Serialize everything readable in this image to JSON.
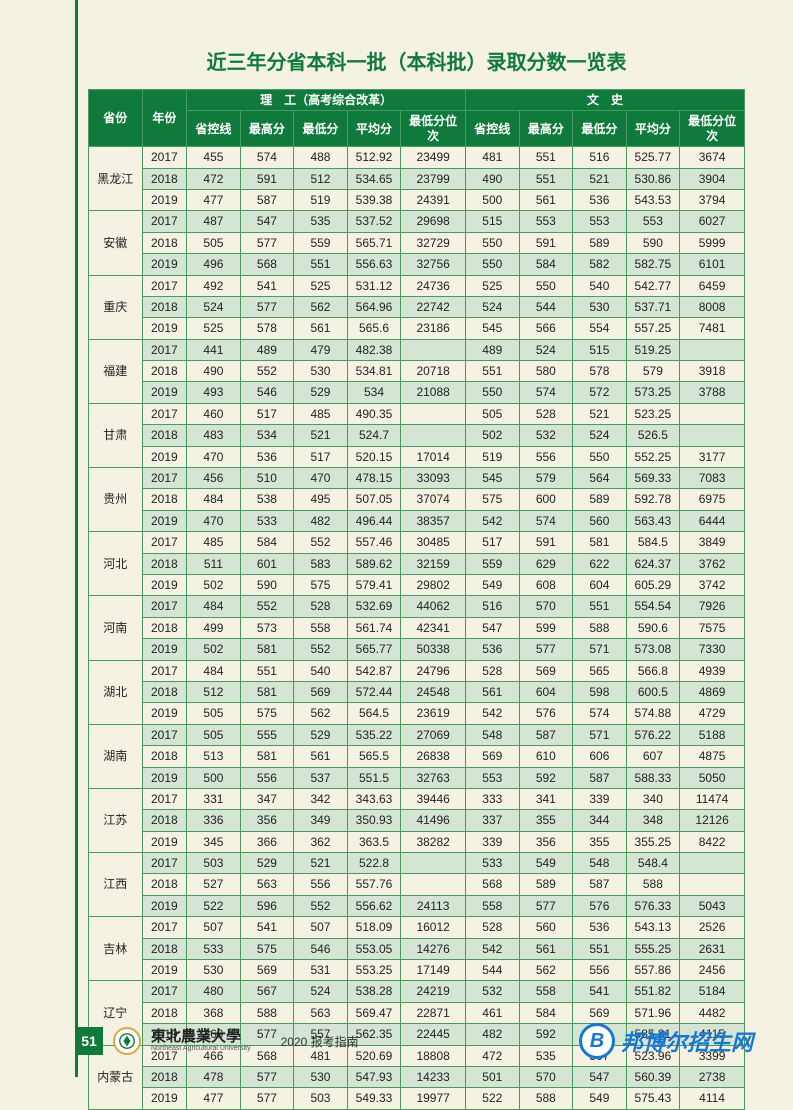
{
  "title": "近三年分省本科一批（本科批）录取分数一览表",
  "header": {
    "province": "省份",
    "year": "年份",
    "science_group": "理　工（高考综合改革）",
    "arts_group": "文　史",
    "cols": [
      "省控线",
      "最高分",
      "最低分",
      "平均分",
      "最低分位次",
      "省控线",
      "最高分",
      "最低分",
      "平均分",
      "最低分位次"
    ]
  },
  "provinces": [
    {
      "name": "黑龙江",
      "rows": [
        {
          "year": "2017",
          "v": [
            "455",
            "574",
            "488",
            "512.92",
            "23499",
            "481",
            "551",
            "516",
            "525.77",
            "3674"
          ]
        },
        {
          "year": "2018",
          "v": [
            "472",
            "591",
            "512",
            "534.65",
            "23799",
            "490",
            "551",
            "521",
            "530.86",
            "3904"
          ]
        },
        {
          "year": "2019",
          "v": [
            "477",
            "587",
            "519",
            "539.38",
            "24391",
            "500",
            "561",
            "536",
            "543.53",
            "3794"
          ]
        }
      ]
    },
    {
      "name": "安徽",
      "rows": [
        {
          "year": "2017",
          "v": [
            "487",
            "547",
            "535",
            "537.52",
            "29698",
            "515",
            "553",
            "553",
            "553",
            "6027"
          ]
        },
        {
          "year": "2018",
          "v": [
            "505",
            "577",
            "559",
            "565.71",
            "32729",
            "550",
            "591",
            "589",
            "590",
            "5999"
          ]
        },
        {
          "year": "2019",
          "v": [
            "496",
            "568",
            "551",
            "556.63",
            "32756",
            "550",
            "584",
            "582",
            "582.75",
            "6101"
          ]
        }
      ]
    },
    {
      "name": "重庆",
      "rows": [
        {
          "year": "2017",
          "v": [
            "492",
            "541",
            "525",
            "531.12",
            "24736",
            "525",
            "550",
            "540",
            "542.77",
            "6459"
          ]
        },
        {
          "year": "2018",
          "v": [
            "524",
            "577",
            "562",
            "564.96",
            "22742",
            "524",
            "544",
            "530",
            "537.71",
            "8008"
          ]
        },
        {
          "year": "2019",
          "v": [
            "525",
            "578",
            "561",
            "565.6",
            "23186",
            "545",
            "566",
            "554",
            "557.25",
            "7481"
          ]
        }
      ]
    },
    {
      "name": "福建",
      "rows": [
        {
          "year": "2017",
          "v": [
            "441",
            "489",
            "479",
            "482.38",
            "",
            "489",
            "524",
            "515",
            "519.25",
            ""
          ]
        },
        {
          "year": "2018",
          "v": [
            "490",
            "552",
            "530",
            "534.81",
            "20718",
            "551",
            "580",
            "578",
            "579",
            "3918"
          ]
        },
        {
          "year": "2019",
          "v": [
            "493",
            "546",
            "529",
            "534",
            "21088",
            "550",
            "574",
            "572",
            "573.25",
            "3788"
          ]
        }
      ]
    },
    {
      "name": "甘肃",
      "rows": [
        {
          "year": "2017",
          "v": [
            "460",
            "517",
            "485",
            "490.35",
            "",
            "505",
            "528",
            "521",
            "523.25",
            ""
          ]
        },
        {
          "year": "2018",
          "v": [
            "483",
            "534",
            "521",
            "524.7",
            "",
            "502",
            "532",
            "524",
            "526.5",
            ""
          ]
        },
        {
          "year": "2019",
          "v": [
            "470",
            "536",
            "517",
            "520.15",
            "17014",
            "519",
            "556",
            "550",
            "552.25",
            "3177"
          ]
        }
      ]
    },
    {
      "name": "贵州",
      "rows": [
        {
          "year": "2017",
          "v": [
            "456",
            "510",
            "470",
            "478.15",
            "33093",
            "545",
            "579",
            "564",
            "569.33",
            "7083"
          ]
        },
        {
          "year": "2018",
          "v": [
            "484",
            "538",
            "495",
            "507.05",
            "37074",
            "575",
            "600",
            "589",
            "592.78",
            "6975"
          ]
        },
        {
          "year": "2019",
          "v": [
            "470",
            "533",
            "482",
            "496.44",
            "38357",
            "542",
            "574",
            "560",
            "563.43",
            "6444"
          ]
        }
      ]
    },
    {
      "name": "河北",
      "rows": [
        {
          "year": "2017",
          "v": [
            "485",
            "584",
            "552",
            "557.46",
            "30485",
            "517",
            "591",
            "581",
            "584.5",
            "3849"
          ]
        },
        {
          "year": "2018",
          "v": [
            "511",
            "601",
            "583",
            "589.62",
            "32159",
            "559",
            "629",
            "622",
            "624.37",
            "3762"
          ]
        },
        {
          "year": "2019",
          "v": [
            "502",
            "590",
            "575",
            "579.41",
            "29802",
            "549",
            "608",
            "604",
            "605.29",
            "3742"
          ]
        }
      ]
    },
    {
      "name": "河南",
      "rows": [
        {
          "year": "2017",
          "v": [
            "484",
            "552",
            "528",
            "532.69",
            "44062",
            "516",
            "570",
            "551",
            "554.54",
            "7926"
          ]
        },
        {
          "year": "2018",
          "v": [
            "499",
            "573",
            "558",
            "561.74",
            "42341",
            "547",
            "599",
            "588",
            "590.6",
            "7575"
          ]
        },
        {
          "year": "2019",
          "v": [
            "502",
            "581",
            "552",
            "565.77",
            "50338",
            "536",
            "577",
            "571",
            "573.08",
            "7330"
          ]
        }
      ]
    },
    {
      "name": "湖北",
      "rows": [
        {
          "year": "2017",
          "v": [
            "484",
            "551",
            "540",
            "542.87",
            "24796",
            "528",
            "569",
            "565",
            "566.8",
            "4939"
          ]
        },
        {
          "year": "2018",
          "v": [
            "512",
            "581",
            "569",
            "572.44",
            "24548",
            "561",
            "604",
            "598",
            "600.5",
            "4869"
          ]
        },
        {
          "year": "2019",
          "v": [
            "505",
            "575",
            "562",
            "564.5",
            "23619",
            "542",
            "576",
            "574",
            "574.88",
            "4729"
          ]
        }
      ]
    },
    {
      "name": "湖南",
      "rows": [
        {
          "year": "2017",
          "v": [
            "505",
            "555",
            "529",
            "535.22",
            "27069",
            "548",
            "587",
            "571",
            "576.22",
            "5188"
          ]
        },
        {
          "year": "2018",
          "v": [
            "513",
            "581",
            "561",
            "565.5",
            "26838",
            "569",
            "610",
            "606",
            "607",
            "4875"
          ]
        },
        {
          "year": "2019",
          "v": [
            "500",
            "556",
            "537",
            "551.5",
            "32763",
            "553",
            "592",
            "587",
            "588.33",
            "5050"
          ]
        }
      ]
    },
    {
      "name": "江苏",
      "rows": [
        {
          "year": "2017",
          "v": [
            "331",
            "347",
            "342",
            "343.63",
            "39446",
            "333",
            "341",
            "339",
            "340",
            "11474"
          ]
        },
        {
          "year": "2018",
          "v": [
            "336",
            "356",
            "349",
            "350.93",
            "41496",
            "337",
            "355",
            "344",
            "348",
            "12126"
          ]
        },
        {
          "year": "2019",
          "v": [
            "345",
            "366",
            "362",
            "363.5",
            "38282",
            "339",
            "356",
            "355",
            "355.25",
            "8422"
          ]
        }
      ]
    },
    {
      "name": "江西",
      "rows": [
        {
          "year": "2017",
          "v": [
            "503",
            "529",
            "521",
            "522.8",
            "",
            "533",
            "549",
            "548",
            "548.4",
            ""
          ]
        },
        {
          "year": "2018",
          "v": [
            "527",
            "563",
            "556",
            "557.76",
            "",
            "568",
            "589",
            "587",
            "588",
            ""
          ]
        },
        {
          "year": "2019",
          "v": [
            "522",
            "596",
            "552",
            "556.62",
            "24113",
            "558",
            "577",
            "576",
            "576.33",
            "5043"
          ]
        }
      ]
    },
    {
      "name": "吉林",
      "rows": [
        {
          "year": "2017",
          "v": [
            "507",
            "541",
            "507",
            "518.09",
            "16012",
            "528",
            "560",
            "536",
            "543.13",
            "2526"
          ]
        },
        {
          "year": "2018",
          "v": [
            "533",
            "575",
            "546",
            "553.05",
            "14276",
            "542",
            "561",
            "551",
            "555.25",
            "2631"
          ]
        },
        {
          "year": "2019",
          "v": [
            "530",
            "569",
            "531",
            "553.25",
            "17149",
            "544",
            "562",
            "556",
            "557.86",
            "2456"
          ]
        }
      ]
    },
    {
      "name": "辽宁",
      "rows": [
        {
          "year": "2017",
          "v": [
            "480",
            "567",
            "524",
            "538.28",
            "24219",
            "532",
            "558",
            "541",
            "551.82",
            "5184"
          ]
        },
        {
          "year": "2018",
          "v": [
            "368",
            "588",
            "563",
            "569.47",
            "22871",
            "461",
            "584",
            "569",
            "571.96",
            "4482"
          ]
        },
        {
          "year": "2019",
          "v": [
            "369",
            "577",
            "557",
            "562.35",
            "22445",
            "482",
            "592",
            "583",
            "585.81",
            "4115"
          ]
        }
      ]
    },
    {
      "name": "内蒙古",
      "rows": [
        {
          "year": "2017",
          "v": [
            "466",
            "568",
            "481",
            "520.69",
            "18808",
            "472",
            "535",
            "507",
            "523.96",
            "3399"
          ]
        },
        {
          "year": "2018",
          "v": [
            "478",
            "577",
            "530",
            "547.93",
            "14233",
            "501",
            "570",
            "547",
            "560.39",
            "2738"
          ]
        },
        {
          "year": "2019",
          "v": [
            "477",
            "577",
            "503",
            "549.33",
            "19977",
            "522",
            "588",
            "549",
            "575.43",
            "4114"
          ]
        }
      ]
    }
  ],
  "footer": {
    "page_num": "51",
    "uni_cn": "東北農業大學",
    "uni_en": "Northeast Agricultural University",
    "guide": "2020 报考指南"
  },
  "watermark": {
    "logo_letter": "B",
    "text": "邦博尔招生网"
  },
  "style": {
    "header_bg": "#0f7a3c",
    "alt_row_bg": "#d5e5d4",
    "page_bg": "#f5f2e4",
    "border": "#4a9a5f"
  }
}
